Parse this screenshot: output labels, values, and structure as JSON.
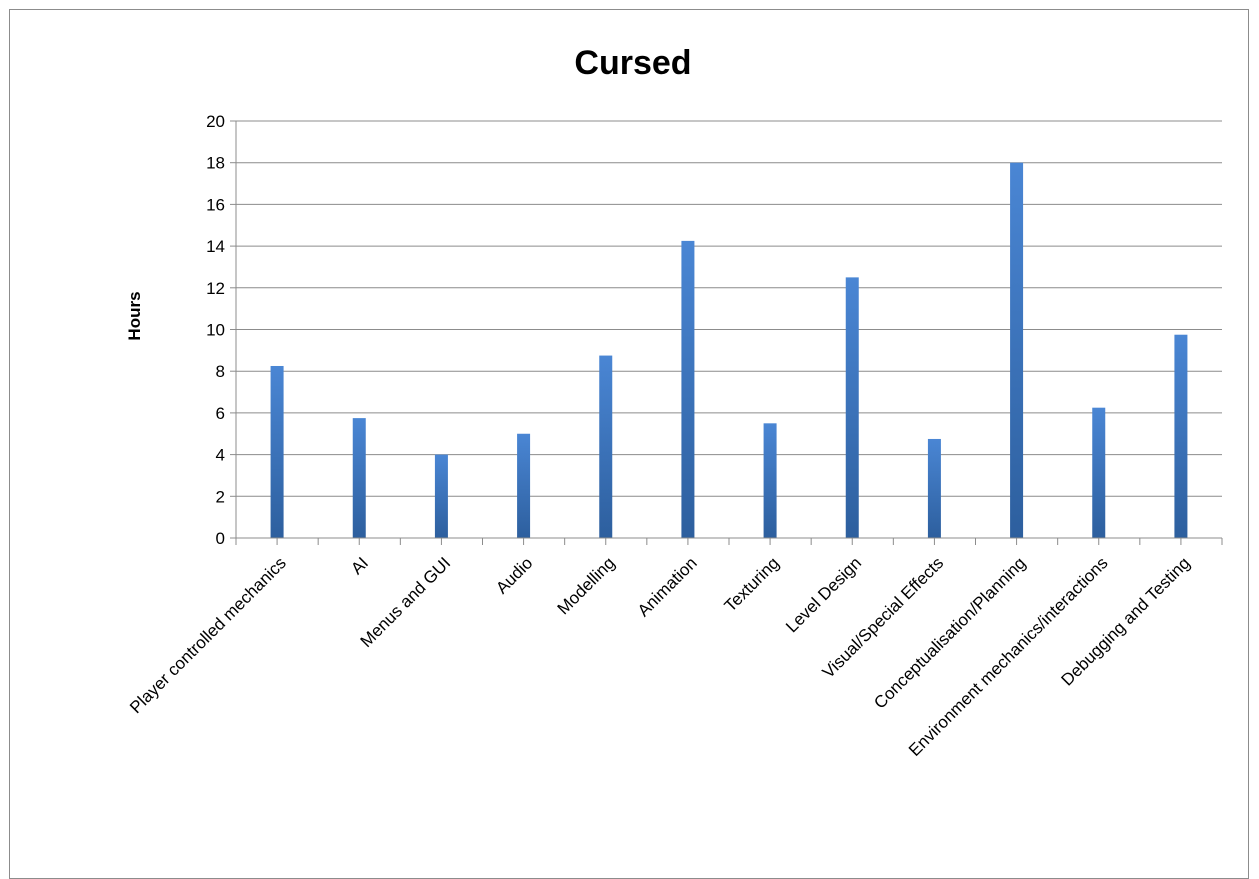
{
  "chart_data": {
    "type": "bar",
    "title": "Cursed",
    "xlabel": "",
    "ylabel": "Hours",
    "ylim": [
      0,
      20
    ],
    "yticks": [
      "0",
      "2",
      "4",
      "6",
      "8",
      "10",
      "12",
      "14",
      "16",
      "18",
      "20"
    ],
    "grid": true,
    "legend": "none",
    "bar_color": "#3a75c4",
    "categories": [
      "Player controlled mechanics",
      "AI",
      "Menus and GUI",
      "Audio",
      "Modelling",
      "Animation",
      "Texturing",
      "Level Design",
      "Visual/Special Effects",
      "Conceptualisation/Planning",
      "Environment mechanics/interactions",
      "Debugging and Testing"
    ],
    "values": [
      8.25,
      5.75,
      4.0,
      5.0,
      8.75,
      14.25,
      5.5,
      12.5,
      4.75,
      18.0,
      6.25,
      9.75
    ]
  }
}
